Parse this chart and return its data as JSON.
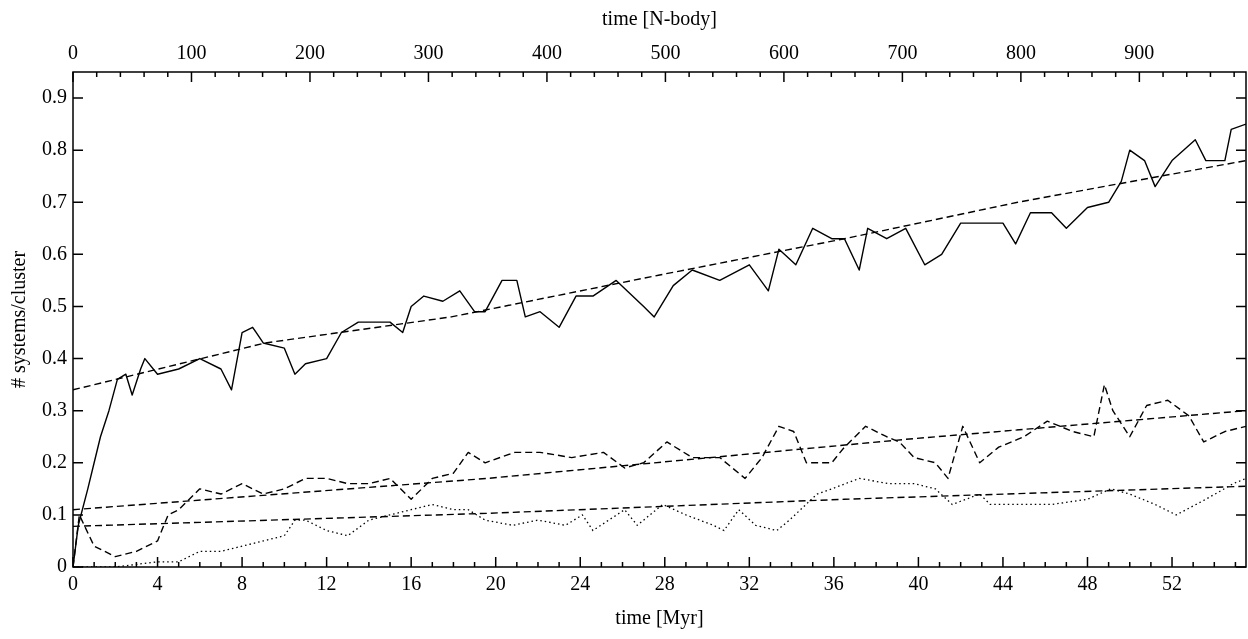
{
  "chart_data": {
    "type": "line",
    "xlabel": "time [Myr]",
    "x2label": "time [N-body]",
    "ylabel": "# systems/cluster",
    "xlim": [
      0,
      55.5
    ],
    "ylim": [
      0,
      0.95
    ],
    "x2lim": [
      0,
      990
    ],
    "xticks": [
      0,
      {
        "value": 1,
        "label": null
      },
      {
        "value": 2,
        "label": null
      },
      {
        "value": 3,
        "label": null
      },
      4,
      {
        "value": 5,
        "label": null
      },
      {
        "value": 6,
        "label": null
      },
      {
        "value": 7,
        "label": null
      },
      8,
      {
        "value": 9,
        "label": null
      },
      {
        "value": 10,
        "label": null
      },
      {
        "value": 11,
        "label": null
      },
      12,
      {
        "value": 13,
        "label": null
      },
      {
        "value": 14,
        "label": null
      },
      {
        "value": 15,
        "label": null
      },
      16,
      {
        "value": 17,
        "label": null
      },
      {
        "value": 18,
        "label": null
      },
      {
        "value": 19,
        "label": null
      },
      20,
      {
        "value": 21,
        "label": null
      },
      {
        "value": 22,
        "label": null
      },
      {
        "value": 23,
        "label": null
      },
      24,
      {
        "value": 25,
        "label": null
      },
      {
        "value": 26,
        "label": null
      },
      {
        "value": 27,
        "label": null
      },
      28,
      {
        "value": 29,
        "label": null
      },
      {
        "value": 30,
        "label": null
      },
      {
        "value": 31,
        "label": null
      },
      32,
      {
        "value": 33,
        "label": null
      },
      {
        "value": 34,
        "label": null
      },
      {
        "value": 35,
        "label": null
      },
      36,
      {
        "value": 37,
        "label": null
      },
      {
        "value": 38,
        "label": null
      },
      {
        "value": 39,
        "label": null
      },
      40,
      {
        "value": 41,
        "label": null
      },
      {
        "value": 42,
        "label": null
      },
      {
        "value": 43,
        "label": null
      },
      44,
      {
        "value": 45,
        "label": null
      },
      {
        "value": 46,
        "label": null
      },
      {
        "value": 47,
        "label": null
      },
      48,
      {
        "value": 49,
        "label": null
      },
      {
        "value": 50,
        "label": null
      },
      {
        "value": 51,
        "label": null
      },
      52,
      {
        "value": 53,
        "label": null
      },
      {
        "value": 54,
        "label": null
      },
      {
        "value": 55,
        "label": null
      }
    ],
    "x2ticks": [
      0,
      {
        "value": 20,
        "label": null
      },
      {
        "value": 40,
        "label": null
      },
      {
        "value": 60,
        "label": null
      },
      {
        "value": 80,
        "label": null
      },
      100,
      {
        "value": 120,
        "label": null
      },
      {
        "value": 140,
        "label": null
      },
      {
        "value": 160,
        "label": null
      },
      {
        "value": 180,
        "label": null
      },
      200,
      {
        "value": 220,
        "label": null
      },
      {
        "value": 240,
        "label": null
      },
      {
        "value": 260,
        "label": null
      },
      {
        "value": 280,
        "label": null
      },
      300,
      {
        "value": 320,
        "label": null
      },
      {
        "value": 340,
        "label": null
      },
      {
        "value": 360,
        "label": null
      },
      {
        "value": 380,
        "label": null
      },
      400,
      {
        "value": 420,
        "label": null
      },
      {
        "value": 440,
        "label": null
      },
      {
        "value": 460,
        "label": null
      },
      {
        "value": 480,
        "label": null
      },
      500,
      {
        "value": 520,
        "label": null
      },
      {
        "value": 540,
        "label": null
      },
      {
        "value": 560,
        "label": null
      },
      {
        "value": 580,
        "label": null
      },
      600,
      {
        "value": 620,
        "label": null
      },
      {
        "value": 640,
        "label": null
      },
      {
        "value": 660,
        "label": null
      },
      {
        "value": 680,
        "label": null
      },
      700,
      {
        "value": 720,
        "label": null
      },
      {
        "value": 740,
        "label": null
      },
      {
        "value": 760,
        "label": null
      },
      {
        "value": 780,
        "label": null
      },
      800,
      {
        "value": 820,
        "label": null
      },
      {
        "value": 840,
        "label": null
      },
      {
        "value": 860,
        "label": null
      },
      {
        "value": 880,
        "label": null
      },
      900,
      {
        "value": 920,
        "label": null
      },
      {
        "value": 940,
        "label": null
      },
      {
        "value": 960,
        "label": null
      },
      {
        "value": 980,
        "label": null
      }
    ],
    "yticks": [
      0,
      0.1,
      0.2,
      0.3,
      0.4,
      0.5,
      0.6,
      0.7,
      0.8,
      0.9
    ],
    "legend": false,
    "marker": "none",
    "series": [
      {
        "type": "line",
        "line_style": "solid",
        "color": "#000000",
        "x": [
          0,
          0.25,
          0.7,
          1.0,
          1.3,
          1.7,
          2.1,
          2.5,
          2.8,
          3.2,
          3.4,
          4,
          5,
          6,
          7,
          7.5,
          8,
          8.5,
          9,
          10,
          10.5,
          11,
          12,
          12.7,
          13.5,
          14,
          15,
          15.6,
          16,
          16.6,
          17.5,
          18.3,
          19,
          19.5,
          20.3,
          21,
          21.4,
          22.1,
          23,
          23.8,
          24.6,
          25.7,
          27,
          27.5,
          28.4,
          29.3,
          30.6,
          32,
          32.9,
          33.4,
          34.2,
          35,
          35.9,
          36.5,
          37.2,
          37.6,
          38.5,
          39.4,
          40.3,
          41.1,
          42,
          43,
          44,
          44.6,
          45.3,
          46.3,
          47,
          48,
          49,
          49.6,
          50,
          50.7,
          51.2,
          52,
          53.1,
          53.6,
          54.5,
          54.8,
          55.5
        ],
        "values": [
          0,
          0.08,
          0.15,
          0.2,
          0.25,
          0.3,
          0.36,
          0.37,
          0.33,
          0.38,
          0.4,
          0.37,
          0.38,
          0.4,
          0.38,
          0.34,
          0.45,
          0.46,
          0.43,
          0.42,
          0.37,
          0.39,
          0.4,
          0.45,
          0.47,
          0.47,
          0.47,
          0.45,
          0.5,
          0.52,
          0.51,
          0.53,
          0.49,
          0.49,
          0.55,
          0.55,
          0.48,
          0.49,
          0.46,
          0.52,
          0.52,
          0.55,
          0.5,
          0.48,
          0.54,
          0.57,
          0.55,
          0.58,
          0.53,
          0.61,
          0.58,
          0.65,
          0.63,
          0.63,
          0.57,
          0.65,
          0.63,
          0.65,
          0.58,
          0.6,
          0.66,
          0.66,
          0.66,
          0.62,
          0.68,
          0.68,
          0.65,
          0.69,
          0.7,
          0.74,
          0.8,
          0.78,
          0.73,
          0.78,
          0.82,
          0.78,
          0.78,
          0.84,
          0.85
        ]
      },
      {
        "type": "line",
        "line_style": "dashed",
        "color": "#000000",
        "x": [
          0,
          0.3,
          1,
          2,
          3,
          4,
          4.5,
          5,
          6,
          7,
          8,
          9,
          10,
          11,
          12,
          13,
          14,
          15,
          16,
          17,
          18,
          18.7,
          19.5,
          20.9,
          22.1,
          23.6,
          25.1,
          26.1,
          27,
          28.1,
          29.3,
          30.6,
          31.8,
          32.6,
          33.4,
          34.1,
          34.7,
          35.9,
          36.5,
          37.5,
          38.5,
          39.1,
          39.8,
          40.8,
          41.4,
          42.1,
          42.9,
          43.8,
          45,
          46.1,
          47.3,
          48.3,
          48.8,
          49.2,
          50,
          50.8,
          51.8,
          52.8,
          53.5,
          54.5,
          55.5
        ],
        "values": [
          0,
          0.1,
          0.04,
          0.02,
          0.03,
          0.05,
          0.1,
          0.11,
          0.15,
          0.14,
          0.16,
          0.14,
          0.15,
          0.17,
          0.17,
          0.16,
          0.16,
          0.17,
          0.13,
          0.17,
          0.18,
          0.22,
          0.2,
          0.22,
          0.22,
          0.21,
          0.22,
          0.19,
          0.2,
          0.24,
          0.21,
          0.21,
          0.17,
          0.21,
          0.27,
          0.26,
          0.2,
          0.2,
          0.23,
          0.27,
          0.25,
          0.24,
          0.21,
          0.2,
          0.17,
          0.27,
          0.2,
          0.23,
          0.25,
          0.28,
          0.26,
          0.25,
          0.35,
          0.3,
          0.25,
          0.31,
          0.32,
          0.29,
          0.24,
          0.26,
          0.27
        ]
      },
      {
        "type": "line",
        "line_style": "dotted",
        "color": "#000000",
        "x": [
          0,
          2,
          4,
          5,
          6,
          7,
          8,
          9,
          10,
          10.5,
          11,
          12,
          13,
          14,
          15,
          16,
          17,
          18,
          18.7,
          19.5,
          20.8,
          22,
          23.3,
          24.1,
          24.6,
          26.1,
          26.7,
          27.9,
          29,
          30.3,
          30.8,
          31.5,
          32.3,
          33.3,
          33.9,
          35.2,
          35.9,
          37.2,
          38.6,
          39.8,
          40.8,
          41.6,
          42.9,
          43.4,
          44.6,
          46.3,
          48,
          49.1,
          50,
          51.2,
          52.2,
          53.6,
          54.9,
          55.5
        ],
        "values": [
          0,
          0,
          0.01,
          0.01,
          0.03,
          0.03,
          0.04,
          0.05,
          0.06,
          0.09,
          0.09,
          0.07,
          0.06,
          0.09,
          0.1,
          0.11,
          0.12,
          0.11,
          0.11,
          0.09,
          0.08,
          0.09,
          0.08,
          0.1,
          0.07,
          0.11,
          0.08,
          0.12,
          0.1,
          0.08,
          0.07,
          0.11,
          0.08,
          0.07,
          0.09,
          0.14,
          0.15,
          0.17,
          0.16,
          0.16,
          0.15,
          0.12,
          0.14,
          0.12,
          0.12,
          0.12,
          0.13,
          0.15,
          0.14,
          0.12,
          0.1,
          0.13,
          0.16,
          0.17
        ]
      },
      {
        "type": "line",
        "line_style": "dashed",
        "color": "#000000",
        "x": [
          0,
          9.1,
          17.9,
          27.7,
          36.5,
          44.7,
          55.5
        ],
        "values": [
          0.34,
          0.43,
          0.48,
          0.56,
          0.63,
          0.7,
          0.78
        ]
      },
      {
        "type": "line",
        "line_style": "dashed",
        "color": "#000000",
        "x": [
          0,
          19.6,
          39.4,
          55.5
        ],
        "values": [
          0.11,
          0.17,
          0.245,
          0.3
        ]
      },
      {
        "type": "line",
        "line_style": "dashed",
        "color": "#000000",
        "x": [
          0,
          19.6,
          36.5,
          55.5
        ],
        "values": [
          0.078,
          0.103,
          0.13,
          0.155
        ]
      }
    ]
  }
}
